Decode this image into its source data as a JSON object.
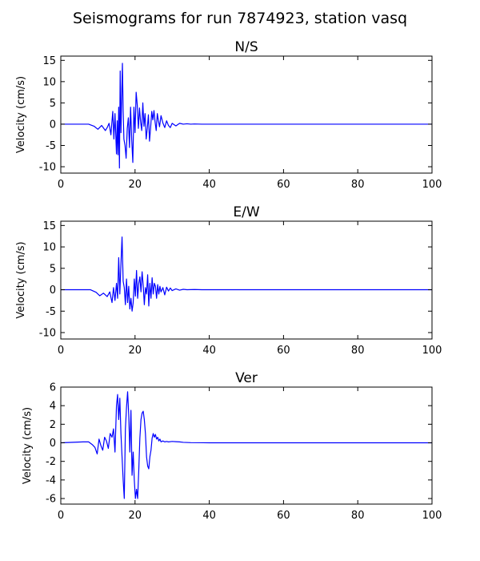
{
  "figure": {
    "suptitle": "Seismograms for run 7874923, station vasq"
  },
  "chart_data": [
    {
      "type": "line",
      "title": "N/S",
      "xlabel": "",
      "ylabel": "Velocity (cm/s)",
      "xlim": [
        0,
        100
      ],
      "ylim": [
        -11.5,
        16
      ],
      "xticks": [
        0,
        20,
        40,
        60,
        80,
        100
      ],
      "yticks": [
        -10,
        -5,
        0,
        5,
        10,
        15
      ],
      "grid": false,
      "series": [
        {
          "color": "#0000ff",
          "x": [
            0,
            7.5,
            9,
            10,
            11,
            12,
            12.5,
            13,
            13.5,
            14,
            14.3,
            14.6,
            15,
            15.2,
            15.4,
            15.6,
            15.8,
            16,
            16.2,
            16.4,
            16.6,
            16.8,
            17,
            17.3,
            17.6,
            17.9,
            18.2,
            18.5,
            18.8,
            19.1,
            19.4,
            19.7,
            20,
            20.3,
            20.6,
            20.9,
            21.2,
            21.5,
            21.8,
            22.1,
            22.4,
            22.7,
            23,
            23.3,
            23.6,
            23.9,
            24.2,
            24.5,
            24.8,
            25.1,
            25.4,
            25.7,
            26,
            26.3,
            26.6,
            27,
            27.5,
            28,
            28.5,
            29,
            29.5,
            30,
            31,
            32,
            33,
            34,
            35,
            36,
            38,
            40,
            45,
            50,
            60,
            70,
            80,
            90,
            100
          ],
          "y": [
            0,
            0,
            -0.5,
            -1.2,
            -0.3,
            -1.5,
            -0.8,
            0.2,
            -2.5,
            3.0,
            -3.5,
            2.5,
            -7.0,
            0.8,
            -7.2,
            4.0,
            -10.3,
            12.5,
            -2.0,
            6.5,
            14.3,
            3.0,
            -3.5,
            -5.0,
            -8.0,
            -1.0,
            1.5,
            -5.5,
            4.0,
            -3.5,
            -9.0,
            4.0,
            -2.0,
            7.5,
            4.5,
            -1.0,
            3.8,
            0.5,
            -1.5,
            5.0,
            -0.5,
            2.5,
            -3.5,
            -1.0,
            2.2,
            -4.0,
            -0.8,
            3.0,
            1.0,
            3.2,
            0.5,
            -1.5,
            2.5,
            0.8,
            -0.6,
            2.0,
            0.3,
            -0.8,
            0.8,
            -0.3,
            -0.8,
            0.2,
            -0.4,
            0.2,
            0,
            0.1,
            0,
            0.05,
            0,
            0,
            0,
            0,
            0,
            0,
            0,
            0,
            0
          ]
        }
      ]
    },
    {
      "type": "line",
      "title": "E/W",
      "xlabel": "",
      "ylabel": "Velocity (cm/s)",
      "xlim": [
        0,
        100
      ],
      "ylim": [
        -11.5,
        16
      ],
      "xticks": [
        0,
        20,
        40,
        60,
        80,
        100
      ],
      "yticks": [
        -10,
        -5,
        0,
        5,
        10,
        15
      ],
      "grid": false,
      "series": [
        {
          "color": "#0000ff",
          "x": [
            0,
            8,
            9.5,
            10.5,
            11.5,
            12.5,
            13.2,
            13.8,
            14.2,
            14.6,
            15,
            15.3,
            15.6,
            15.9,
            16.2,
            16.5,
            16.8,
            17.1,
            17.4,
            17.7,
            18,
            18.3,
            18.6,
            18.9,
            19.2,
            19.5,
            19.8,
            20.1,
            20.4,
            20.7,
            21,
            21.3,
            21.6,
            21.9,
            22.2,
            22.5,
            22.8,
            23.1,
            23.4,
            23.7,
            24,
            24.3,
            24.6,
            24.9,
            25.2,
            25.5,
            25.8,
            26.1,
            26.4,
            26.7,
            27,
            27.5,
            28,
            28.5,
            29,
            29.5,
            30,
            31,
            32,
            33,
            34,
            36,
            38,
            40,
            45,
            50,
            60,
            70,
            80,
            90,
            100
          ],
          "y": [
            0,
            0,
            -0.6,
            -1.4,
            -0.8,
            -1.6,
            -0.5,
            -3.0,
            0.5,
            -2.5,
            1.5,
            -2.0,
            7.5,
            -1.0,
            6.0,
            12.3,
            2.0,
            0.5,
            -3.5,
            2.5,
            -3.0,
            0.8,
            -4.5,
            -2.0,
            -5.0,
            -3.0,
            2.5,
            -1.5,
            4.5,
            -2.0,
            1.5,
            3.0,
            -0.5,
            4.2,
            1.0,
            -3.5,
            0.5,
            -1.0,
            3.5,
            -3.8,
            1.5,
            -2.0,
            2.8,
            -1.0,
            1.5,
            0.8,
            -2.0,
            1.2,
            -1.0,
            0.8,
            -0.5,
            0.5,
            -1.2,
            0.6,
            -0.3,
            0.4,
            -0.2,
            0.2,
            -0.1,
            0.1,
            0,
            0.05,
            0,
            0,
            0,
            0,
            0,
            0,
            0,
            0,
            0
          ]
        }
      ]
    },
    {
      "type": "line",
      "title": "Ver",
      "xlabel": "",
      "ylabel": "Velocity (cm/s)",
      "xlim": [
        0,
        100
      ],
      "ylim": [
        -6.6,
        6
      ],
      "xticks": [
        0,
        20,
        40,
        60,
        80,
        100
      ],
      "yticks": [
        -6,
        -4,
        -2,
        0,
        2,
        4,
        6
      ],
      "grid": false,
      "series": [
        {
          "color": "#0000ff",
          "x": [
            0,
            6,
            7.5,
            8.5,
            9.2,
            9.8,
            10.3,
            10.8,
            11.3,
            11.8,
            12.3,
            12.8,
            13.3,
            13.8,
            14.2,
            14.6,
            15,
            15.3,
            15.6,
            15.9,
            16.2,
            16.5,
            16.8,
            17.1,
            17.4,
            17.7,
            18,
            18.3,
            18.6,
            18.9,
            19.2,
            19.5,
            19.8,
            20.1,
            20.4,
            20.7,
            21,
            21.3,
            21.6,
            21.9,
            22.2,
            22.5,
            22.8,
            23.1,
            23.4,
            23.7,
            24,
            24.3,
            24.6,
            24.9,
            25.2,
            25.5,
            25.8,
            26.1,
            26.4,
            26.7,
            27,
            27.5,
            28,
            28.5,
            29,
            30,
            31,
            32,
            33,
            35,
            40,
            50,
            60,
            70,
            80,
            90,
            100
          ],
          "y": [
            0,
            0.1,
            0.1,
            -0.2,
            -0.5,
            -1.2,
            0.4,
            -0.3,
            -0.8,
            0.6,
            0.2,
            -0.6,
            1.0,
            0.6,
            1.5,
            -1.0,
            4.0,
            5.2,
            2.5,
            4.8,
            1.0,
            -1.5,
            -4.0,
            -6.0,
            1.5,
            3.8,
            5.5,
            3.0,
            -1.0,
            3.5,
            -3.5,
            -1.0,
            -4.0,
            -6.0,
            -5.0,
            -6.0,
            -3.0,
            0.5,
            2.5,
            3.2,
            3.4,
            2.5,
            1.0,
            -1.5,
            -2.5,
            -2.8,
            -1.5,
            -0.8,
            0.5,
            1.0,
            0.6,
            0.9,
            0.4,
            0.6,
            0.2,
            0.4,
            0.1,
            0.2,
            0.1,
            0.15,
            0.1,
            0.15,
            0.12,
            0.1,
            0.05,
            0.02,
            0,
            0,
            0,
            0,
            0,
            0,
            0
          ]
        }
      ]
    }
  ]
}
